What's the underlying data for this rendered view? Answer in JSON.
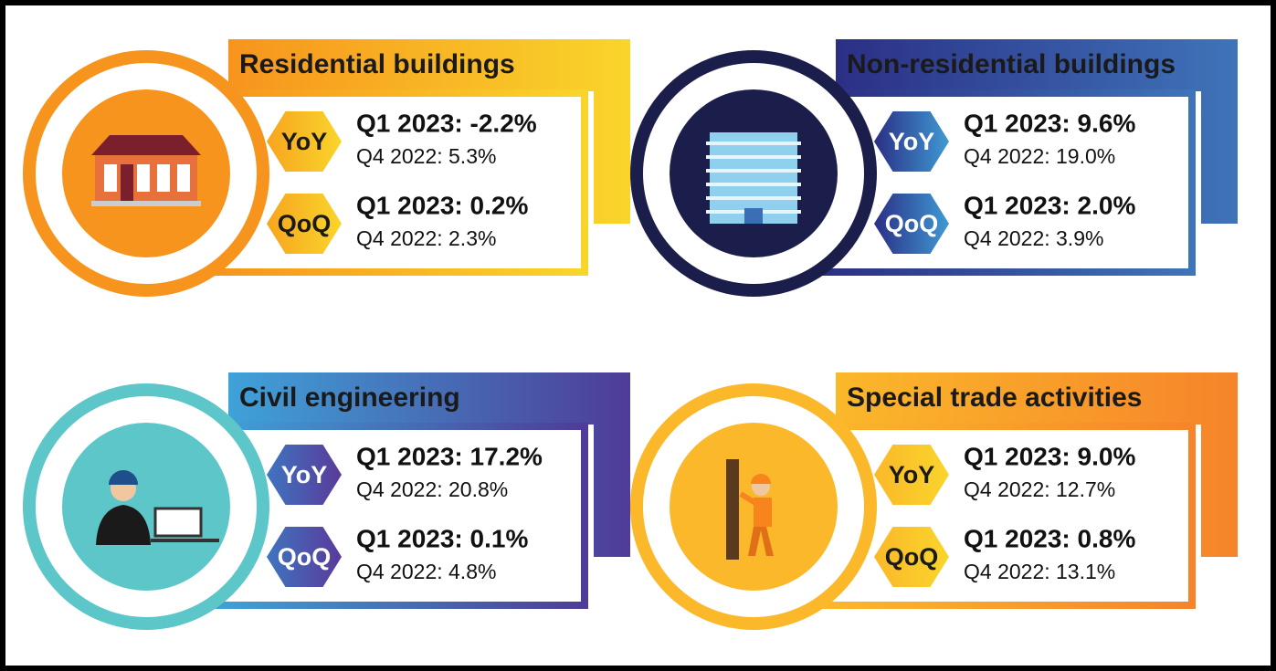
{
  "panels": [
    {
      "title": "Residential buildings",
      "rows": [
        {
          "label": "YoY",
          "current": "Q1 2023: -2.2%",
          "previous": "Q4 2022: 5.3%"
        },
        {
          "label": "QoQ",
          "current": "Q1 2023: 0.2%",
          "previous": "Q4 2022: 2.3%"
        }
      ]
    },
    {
      "title": "Non-residential buildings",
      "rows": [
        {
          "label": "YoY",
          "current": "Q1 2023: 9.6%",
          "previous": "Q4 2022: 19.0%"
        },
        {
          "label": "QoQ",
          "current": "Q1 2023: 2.0%",
          "previous": "Q4 2022: 3.9%"
        }
      ]
    },
    {
      "title": "Civil engineering",
      "rows": [
        {
          "label": "YoY",
          "current": "Q1 2023: 17.2%",
          "previous": "Q4 2022: 20.8%"
        },
        {
          "label": "QoQ",
          "current": "Q1 2023: 0.1%",
          "previous": "Q4 2022: 4.8%"
        }
      ]
    },
    {
      "title": "Special trade activities",
      "rows": [
        {
          "label": "YoY",
          "current": "Q1 2023: 9.0%",
          "previous": "Q4 2022: 12.7%"
        },
        {
          "label": "QoQ",
          "current": "Q1 2023: 0.8%",
          "previous": "Q4 2022: 13.1%"
        }
      ]
    }
  ]
}
